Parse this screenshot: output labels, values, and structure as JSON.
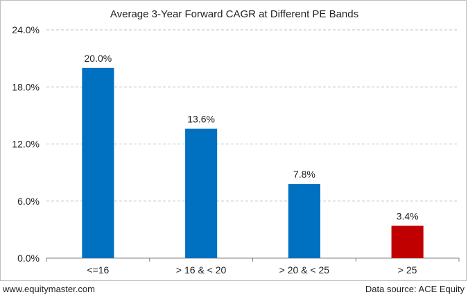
{
  "chart_data": {
    "type": "bar",
    "title": "Average 3-Year Forward CAGR at Different PE Bands",
    "categories": [
      "<=16",
      "> 16 & < 20",
      "> 20 & < 25",
      "> 25"
    ],
    "values": [
      20.0,
      13.6,
      7.8,
      3.4
    ],
    "value_labels": [
      "20.0%",
      "13.6%",
      "7.8%",
      "3.4%"
    ],
    "bar_colors": [
      "#0070C0",
      "#0070C0",
      "#0070C0",
      "#C00000"
    ],
    "ylim": [
      0,
      24
    ],
    "yticks": [
      0,
      6,
      12,
      18,
      24
    ],
    "ytick_labels": [
      "0.0%",
      "6.0%",
      "12.0%",
      "18.0%",
      "24.0%"
    ],
    "xlabel": "",
    "ylabel": "",
    "grid": "horizontal dashed",
    "legend": "none"
  },
  "footer": {
    "source_left": "www.equitymaster.com",
    "source_right": "Data source: ACE Equity"
  }
}
